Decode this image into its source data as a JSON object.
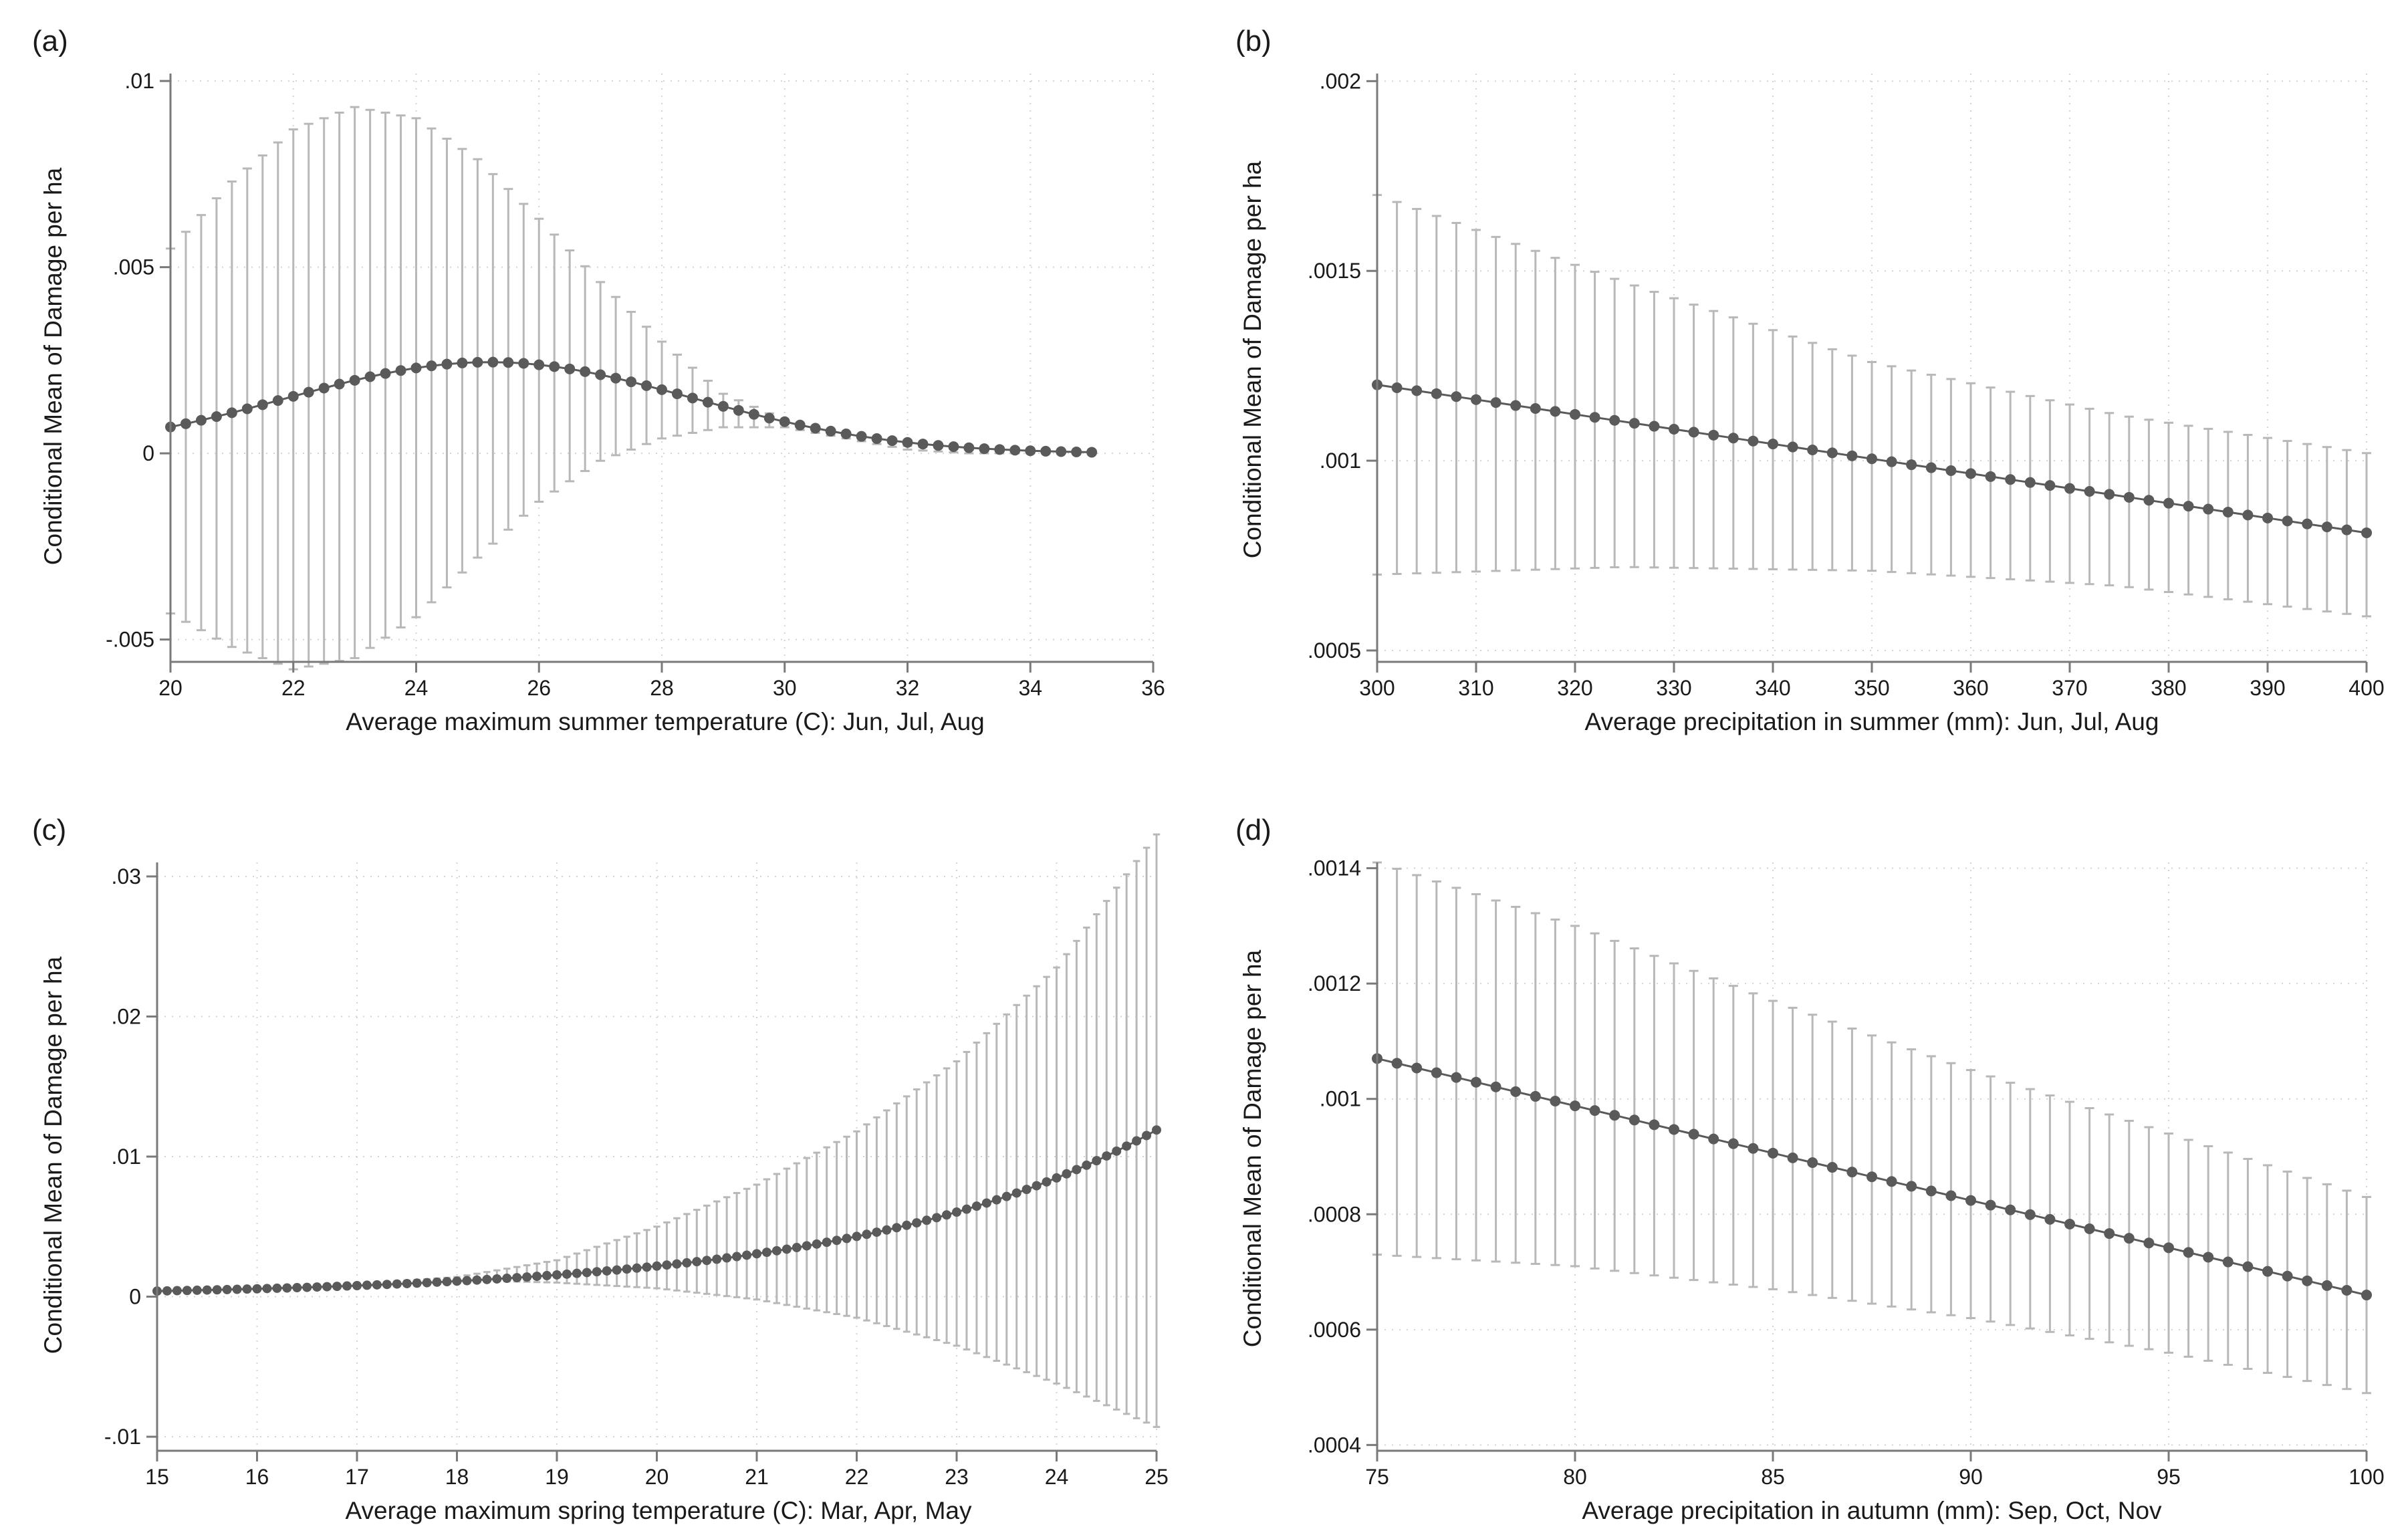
{
  "chart_data": [
    {
      "type": "scatter",
      "panel_label": "(a)",
      "xlabel": "Average maximum summer temperature (C): Jun, Jul, Aug",
      "ylabel": "Conditional Mean of Damage per ha",
      "xlim": [
        20,
        36
      ],
      "ylim": [
        -0.0056,
        0.0102
      ],
      "xticks": [
        20,
        22,
        24,
        26,
        28,
        30,
        32,
        34,
        36
      ],
      "xtick_labels": [
        "20",
        "22",
        "24",
        "26",
        "28",
        "30",
        "32",
        "34",
        "36"
      ],
      "yticks": [
        -0.005,
        0,
        0.005,
        0.01
      ],
      "ytick_labels": [
        "-.005",
        "0",
        ".005",
        ".01"
      ],
      "grid": true,
      "x_range": [
        20,
        35
      ],
      "n_points": 61,
      "curve": {
        "form": "gaussian",
        "baseline": 0,
        "peak_x": 25.2,
        "peak_y": 0.00245,
        "width": 3.3
      },
      "ci": [
        {
          "x": 20,
          "lo": -0.0043,
          "hi": 0.0055
        },
        {
          "x": 21,
          "lo": -0.0052,
          "hi": 0.0073
        },
        {
          "x": 22,
          "lo": -0.0058,
          "hi": 0.0087
        },
        {
          "x": 23,
          "lo": -0.0055,
          "hi": 0.0093
        },
        {
          "x": 24,
          "lo": -0.0044,
          "hi": 0.009
        },
        {
          "x": 25,
          "lo": -0.0028,
          "hi": 0.0079
        },
        {
          "x": 26,
          "lo": -0.0013,
          "hi": 0.0063
        },
        {
          "x": 27,
          "lo": -0.0002,
          "hi": 0.0046
        },
        {
          "x": 28,
          "lo": 0.0004,
          "hi": 0.003
        },
        {
          "x": 29,
          "lo": 0.0007,
          "hi": 0.0016
        },
        {
          "x": 30,
          "lo": 0.0007,
          "hi": 0.0009
        },
        {
          "x": 31,
          "lo": 0.0004,
          "hi": 0.0005
        },
        {
          "x": 32,
          "lo": 0.0001,
          "hi": 0.0002
        },
        {
          "x": 33,
          "lo": 0.0,
          "hi": 0.0001
        },
        {
          "x": 34,
          "lo": 0.0,
          "hi": 0.0
        },
        {
          "x": 35,
          "lo": 0.0,
          "hi": 0.0
        }
      ]
    },
    {
      "type": "scatter",
      "panel_label": "(b)",
      "xlabel": "Average precipitation in summer (mm): Jun, Jul, Aug",
      "ylabel": "Conditional Mean of Damage per ha",
      "xlim": [
        300,
        400
      ],
      "ylim": [
        0.00047,
        0.00202
      ],
      "xticks": [
        300,
        310,
        320,
        330,
        340,
        350,
        360,
        370,
        380,
        390,
        400
      ],
      "xtick_labels": [
        "300",
        "310",
        "320",
        "330",
        "340",
        "350",
        "360",
        "370",
        "380",
        "390",
        "400"
      ],
      "yticks": [
        0.0005,
        0.001,
        0.0015,
        0.002
      ],
      "ytick_labels": [
        ".0005",
        ".001",
        ".0015",
        ".002"
      ],
      "grid": true,
      "x_range": [
        300,
        400
      ],
      "n_points": 51,
      "curve": {
        "form": "linear",
        "y_start": 0.0012,
        "y_end": 0.00081
      },
      "ci": [
        {
          "x": 300,
          "lo": 0.0007,
          "hi": 0.0017
        },
        {
          "x": 325,
          "lo": 0.00072,
          "hi": 0.00147
        },
        {
          "x": 350,
          "lo": 0.00071,
          "hi": 0.00126
        },
        {
          "x": 375,
          "lo": 0.00067,
          "hi": 0.00112
        },
        {
          "x": 400,
          "lo": 0.00059,
          "hi": 0.00102
        }
      ]
    },
    {
      "type": "scatter",
      "panel_label": "(c)",
      "xlabel": "Average maximum spring temperature (C): Mar, Apr, May",
      "ylabel": "Conditional Mean of Damage per ha",
      "xlim": [
        15,
        25
      ],
      "ylim": [
        -0.011,
        0.031
      ],
      "xticks": [
        15,
        16,
        17,
        18,
        19,
        20,
        21,
        22,
        23,
        24,
        25
      ],
      "xtick_labels": [
        "15",
        "16",
        "17",
        "18",
        "19",
        "20",
        "21",
        "22",
        "23",
        "24",
        "25"
      ],
      "yticks": [
        -0.01,
        0,
        0.01,
        0.02,
        0.03
      ],
      "ytick_labels": [
        "-.01",
        "0",
        ".01",
        ".02",
        ".03"
      ],
      "grid": true,
      "x_range": [
        15,
        25
      ],
      "n_points": 101,
      "curve": {
        "form": "exponential",
        "y_start": 0.0004,
        "y_end": 0.0119
      },
      "ci": [
        {
          "x": 15,
          "lo": 0.0004,
          "hi": 0.0004
        },
        {
          "x": 17,
          "lo": 0.0008,
          "hi": 0.0009
        },
        {
          "x": 18,
          "lo": 0.0012,
          "hi": 0.0014
        },
        {
          "x": 19,
          "lo": 0.001,
          "hi": 0.0026
        },
        {
          "x": 20,
          "lo": 0.0006,
          "hi": 0.005
        },
        {
          "x": 21,
          "lo": -0.0002,
          "hi": 0.008
        },
        {
          "x": 22,
          "lo": -0.0015,
          "hi": 0.0118
        },
        {
          "x": 23,
          "lo": -0.0035,
          "hi": 0.0168
        },
        {
          "x": 24,
          "lo": -0.0062,
          "hi": 0.0235
        },
        {
          "x": 25,
          "lo": -0.0093,
          "hi": 0.033
        }
      ]
    },
    {
      "type": "scatter",
      "panel_label": "(d)",
      "xlabel": "Average precipitation in autumn (mm): Sep, Oct, Nov",
      "ylabel": "Conditional Mean of Damage per ha",
      "xlim": [
        75,
        100
      ],
      "ylim": [
        0.00039,
        0.00141
      ],
      "xticks": [
        75,
        80,
        85,
        90,
        95,
        100
      ],
      "xtick_labels": [
        "75",
        "80",
        "85",
        "90",
        "95",
        "100"
      ],
      "yticks": [
        0.0004,
        0.0006,
        0.0008,
        0.001,
        0.0012,
        0.0014
      ],
      "ytick_labels": [
        ".0004",
        ".0006",
        ".0008",
        ".001",
        ".0012",
        ".0014"
      ],
      "grid": true,
      "x_range": [
        75,
        100
      ],
      "n_points": 51,
      "curve": {
        "form": "linear",
        "y_start": 0.00107,
        "y_end": 0.00066
      },
      "ci": [
        {
          "x": 75,
          "lo": 0.00073,
          "hi": 0.00141
        },
        {
          "x": 80,
          "lo": 0.00071,
          "hi": 0.0013
        },
        {
          "x": 85,
          "lo": 0.00067,
          "hi": 0.00117
        },
        {
          "x": 90,
          "lo": 0.00062,
          "hi": 0.00105
        },
        {
          "x": 95,
          "lo": 0.00056,
          "hi": 0.00094
        },
        {
          "x": 100,
          "lo": 0.00049,
          "hi": 0.00083
        }
      ]
    }
  ],
  "colors": {
    "background": "#ffffff",
    "points": "#5a5a5a",
    "ci_bars": "#b8b8b8",
    "axis": "#7a7a7a",
    "grid": "#d4d4d4",
    "text": "#1a1a1a"
  }
}
